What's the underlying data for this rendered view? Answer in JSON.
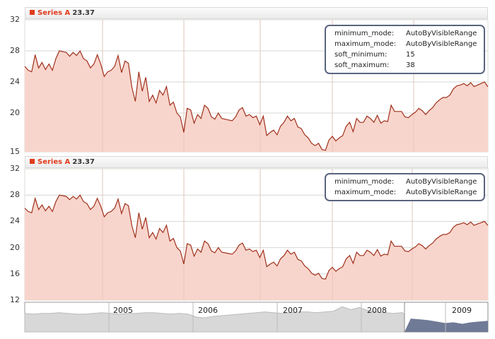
{
  "chart_data": [
    {
      "type": "area",
      "series": [
        {
          "name": "Series A",
          "last_value": "23.37"
        }
      ],
      "yticks": [
        "32",
        "28",
        "24",
        "20",
        "15"
      ],
      "ylim": [
        15,
        32
      ],
      "settings": [
        {
          "key": "minimum_mode:",
          "value": "AutoByVisibleRange"
        },
        {
          "key": "maximum_mode:",
          "value": "AutoByVisibleRange"
        },
        {
          "key": "soft_minimum:",
          "value": "15"
        },
        {
          "key": "soft_maximum:",
          "value": "38"
        }
      ]
    },
    {
      "type": "area",
      "series": [
        {
          "name": "Series A",
          "last_value": "23.37"
        }
      ],
      "yticks": [
        "32",
        "28",
        "24",
        "20",
        "16",
        "12"
      ],
      "ylim": [
        12,
        32
      ],
      "settings": [
        {
          "key": "minimum_mode:",
          "value": "AutoByVisibleRange"
        },
        {
          "key": "maximum_mode:",
          "value": "AutoByVisibleRange"
        }
      ]
    }
  ],
  "values": [
    26,
    25.5,
    25.3,
    27.5,
    25.8,
    26.5,
    25.6,
    26.3,
    25.5,
    27,
    28,
    27.9,
    27.8,
    27.3,
    27.8,
    27.4,
    28,
    27,
    26.7,
    25.8,
    26.3,
    27.5,
    26.3,
    24.7,
    25.3,
    25.5,
    26,
    27.4,
    25.2,
    26.7,
    26.4,
    23.3,
    21.5,
    25.3,
    22.8,
    24.6,
    21.5,
    22.3,
    21.3,
    22.9,
    22.3,
    23.4,
    21,
    21.4,
    20,
    19.5,
    17.5,
    20.6,
    20.4,
    18.7,
    19.8,
    19.3,
    21,
    20.6,
    19.5,
    19.2,
    20,
    19.3,
    19.2,
    19.1,
    19,
    19.5,
    20.4,
    20.7,
    19.6,
    19.8,
    19.4,
    19.6,
    18.5,
    19.6,
    17.1,
    17.5,
    17.8,
    17.2,
    18.3,
    18.8,
    19.6,
    19,
    19.3,
    18.2,
    18,
    17.2,
    16.8,
    16.1,
    15.8,
    16.1,
    15.3,
    15.2,
    16.5,
    17,
    16.4,
    16.8,
    17.1,
    18.3,
    18.8,
    17.6,
    19.3,
    18.8,
    18.8,
    19.6,
    19.3,
    18.8,
    19.7,
    18.7,
    19,
    18.9,
    21,
    20.2,
    20.2,
    20.2,
    19.5,
    19.4,
    19.8,
    20.1,
    20.6,
    20.3,
    19.8,
    20.3,
    20.7,
    21.3,
    21.7,
    22,
    22,
    22.3,
    23.1,
    23.5,
    23.6,
    23.8,
    23.5,
    23.9,
    23.4,
    23.6,
    23.8,
    24,
    23.37
  ],
  "navigator": {
    "years": [
      "2005",
      "2006",
      "2007",
      "2008",
      "2009"
    ],
    "values": [
      25,
      24,
      25,
      25,
      26,
      25,
      24,
      24,
      25,
      26,
      25,
      24,
      25,
      25,
      26,
      26,
      25,
      24,
      25,
      24,
      20,
      19,
      21,
      22,
      23,
      24,
      25,
      26,
      27,
      26,
      25,
      26,
      27,
      27,
      26,
      27,
      28,
      34,
      30,
      33,
      29,
      27,
      26,
      25,
      26,
      18,
      17,
      16,
      14,
      12,
      13,
      11,
      13,
      14,
      15
    ]
  }
}
